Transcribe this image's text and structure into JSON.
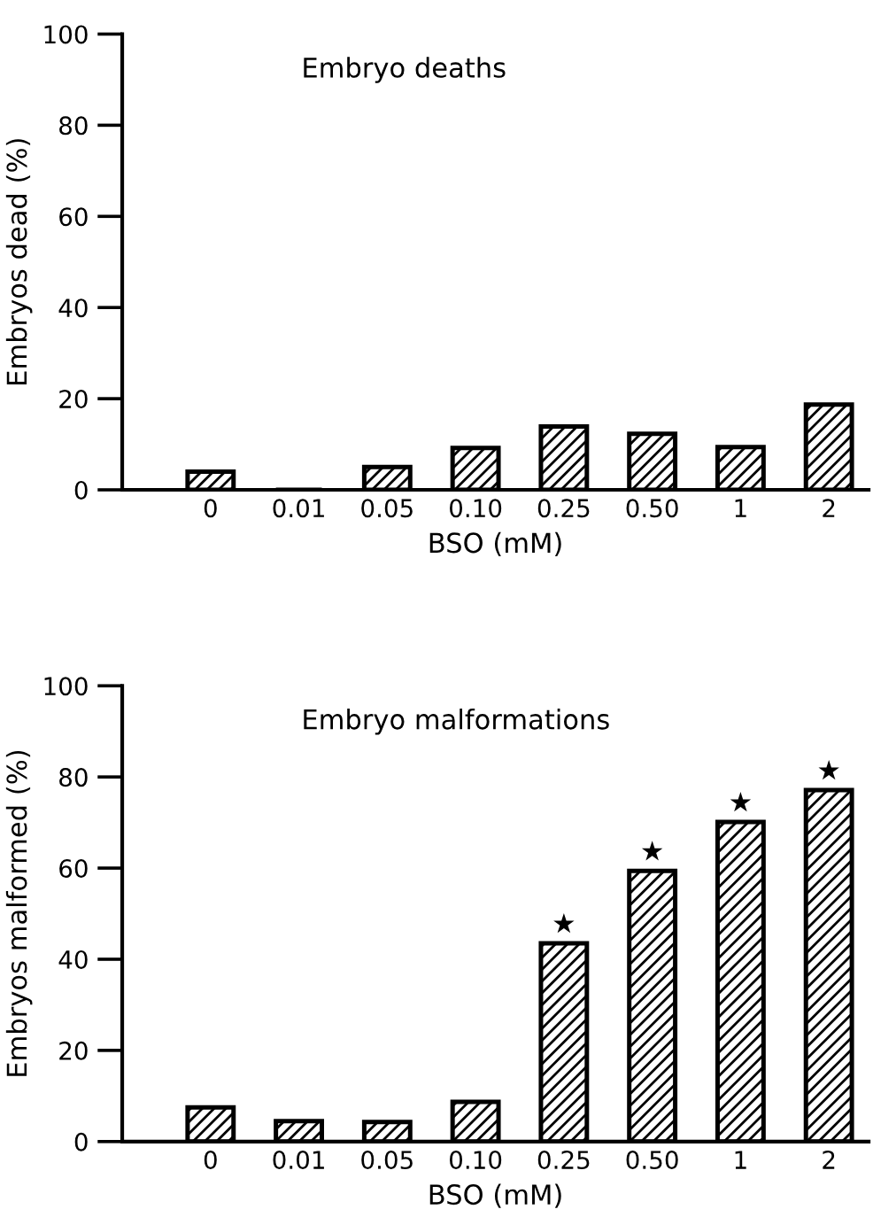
{
  "chart_data": [
    {
      "type": "bar",
      "title": "Embryo deaths",
      "xlabel": "BSO (mM)",
      "ylabel": "Embryos dead (%)",
      "categories": [
        "0",
        "0.01",
        "0.05",
        "0.10",
        "0.25",
        "0.50",
        "1",
        "2"
      ],
      "values": [
        4.0,
        0,
        5.0,
        9.2,
        13.9,
        12.3,
        9.4,
        18.7
      ],
      "color": "#000000",
      "ylim": [
        0,
        100
      ],
      "yticks": [
        0,
        20,
        40,
        60,
        80,
        100
      ],
      "grid": false,
      "legend": false
    },
    {
      "type": "bar",
      "title": "Embryo malformations",
      "xlabel": "BSO (mM)",
      "ylabel": "Embryos malformed (%)",
      "categories": [
        "0",
        "0.01",
        "0.05",
        "0.10",
        "0.25",
        "0.50",
        "1",
        "2"
      ],
      "values": [
        7.5,
        4.5,
        4.3,
        8.7,
        43.5,
        59.4,
        70.1,
        77.1
      ],
      "color": "#000000",
      "ylim": [
        0,
        100
      ],
      "yticks": [
        0,
        20,
        40,
        60,
        80,
        100
      ],
      "grid": false,
      "legend": false,
      "annotations": [
        {
          "text": "★",
          "x": "0.25",
          "y": 43.5
        },
        {
          "text": "★",
          "x": "0.50",
          "y": 59.4
        },
        {
          "text": "★",
          "x": "1",
          "y": 70.1
        },
        {
          "text": "★",
          "x": "2",
          "y": 77.1
        }
      ]
    }
  ]
}
